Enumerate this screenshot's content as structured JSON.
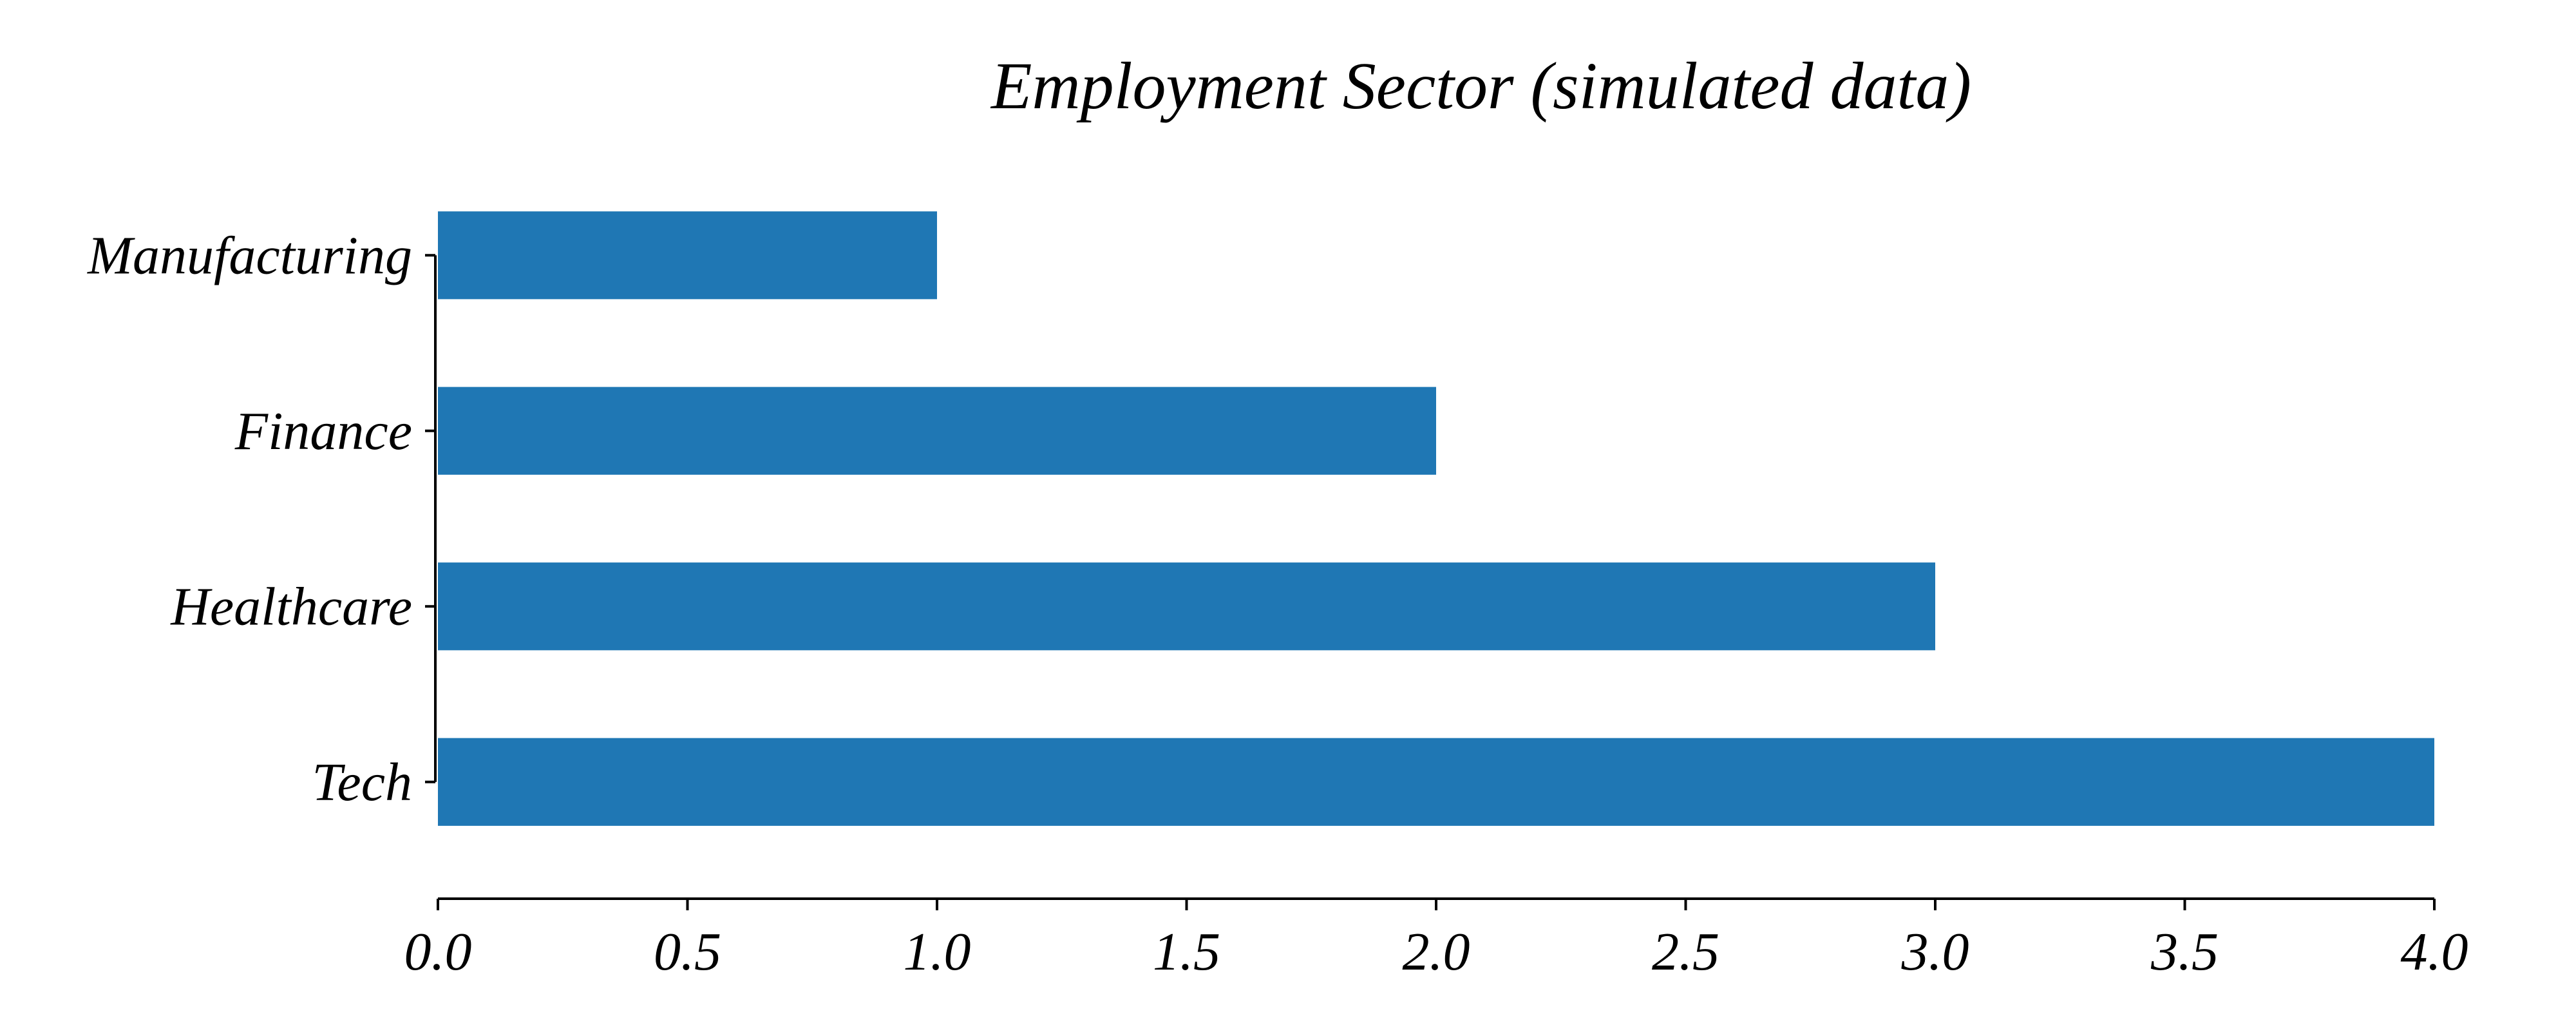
{
  "chart_data": {
    "type": "bar",
    "orientation": "horizontal",
    "title": "Employment Sector (simulated data)",
    "xlabel": "",
    "ylabel": "",
    "categories": [
      "Tech",
      "Healthcare",
      "Finance",
      "Manufacturing"
    ],
    "values": [
      4,
      3,
      2,
      1
    ],
    "xlim": [
      0,
      4
    ],
    "xticks": [
      "0.0",
      "0.5",
      "1.0",
      "1.5",
      "2.0",
      "2.5",
      "3.0",
      "3.5",
      "4.0"
    ],
    "grid": false,
    "legend": "none",
    "bar_color": "#1f77b4"
  }
}
